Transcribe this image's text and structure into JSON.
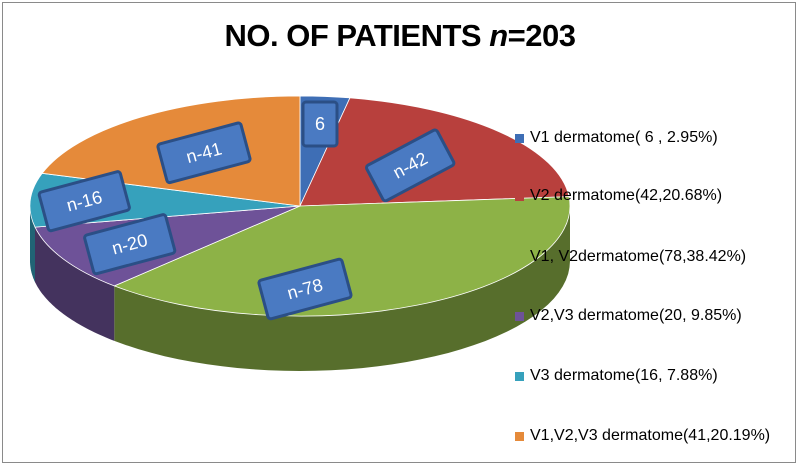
{
  "chart_data": {
    "type": "pie",
    "title_prefix": "NO. OF PATIENTS ",
    "title_n": "n",
    "title_suffix": "=203",
    "categories": [
      "V1 dermatome",
      "V2 dermatome",
      "V1, V2dermatome",
      "V2,V3 dermatome",
      "V3 dermatome",
      "V1,V2,V3 dermatome"
    ],
    "values": [
      6,
      42,
      78,
      20,
      16,
      41
    ],
    "colors": [
      "#3E6EB5",
      "#B8403D",
      "#8DB247",
      "#6E5298",
      "#36A1BC",
      "#E58A3A"
    ],
    "slice_labels": [
      "6",
      "n-42",
      "n-78",
      "n-20",
      "n-16",
      "n-41"
    ],
    "legend_entries": [
      "V1 dermatome( 6 , 2.95%)",
      "V2 dermatome(42,20.68%)",
      "V1, V2dermatome(78,38.42%)",
      "V2,V3 dermatome(20, 9.85%)",
      "V3 dermatome(16, 7.88%)",
      "V1,V2,V3 dermatome(41,20.19%)"
    ],
    "legend_swatch_visible": [
      true,
      true,
      false,
      true,
      true,
      true
    ],
    "legend_position": "right"
  }
}
